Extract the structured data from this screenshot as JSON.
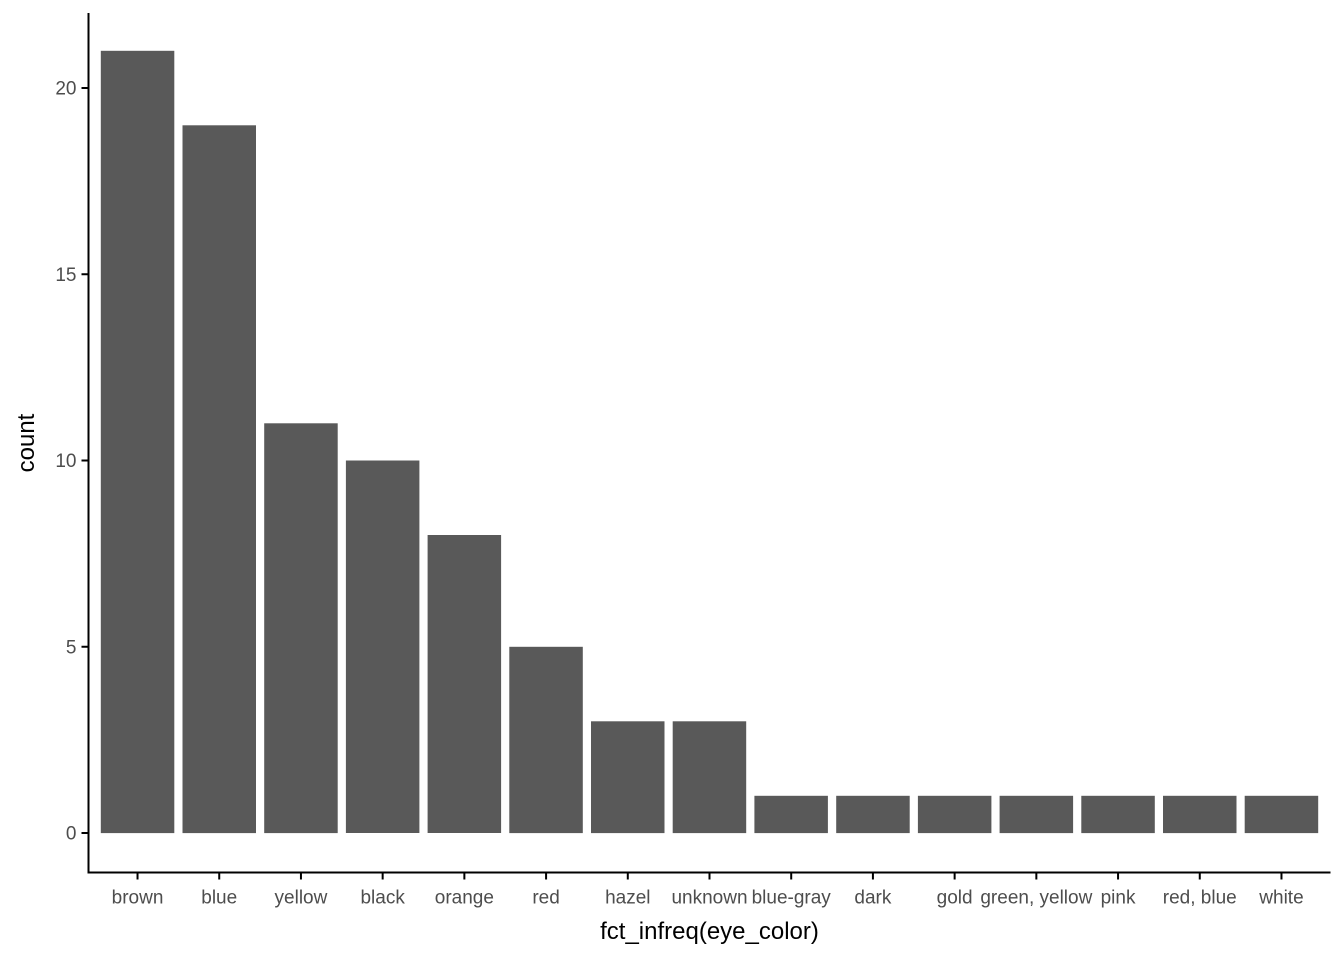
{
  "chart_data": {
    "type": "bar",
    "title": "",
    "xlabel": "fct_infreq(eye_color)",
    "ylabel": "count",
    "categories": [
      "brown",
      "blue",
      "yellow",
      "black",
      "orange",
      "red",
      "hazel",
      "unknown",
      "blue-gray",
      "dark",
      "gold",
      "green, yellow",
      "pink",
      "red, blue",
      "white"
    ],
    "values": [
      21,
      19,
      11,
      10,
      8,
      5,
      3,
      3,
      1,
      1,
      1,
      1,
      1,
      1,
      1
    ],
    "y_ticks": [
      0,
      5,
      10,
      15,
      20
    ],
    "ylim": [
      0,
      22.05
    ],
    "grid": false,
    "legend": false,
    "theme": "classic",
    "colors": {
      "bar_fill": "#595959",
      "axis_line": "#000000",
      "tick_label": "#4D4D4D",
      "axis_title": "#000000",
      "background": "#FFFFFF"
    }
  }
}
